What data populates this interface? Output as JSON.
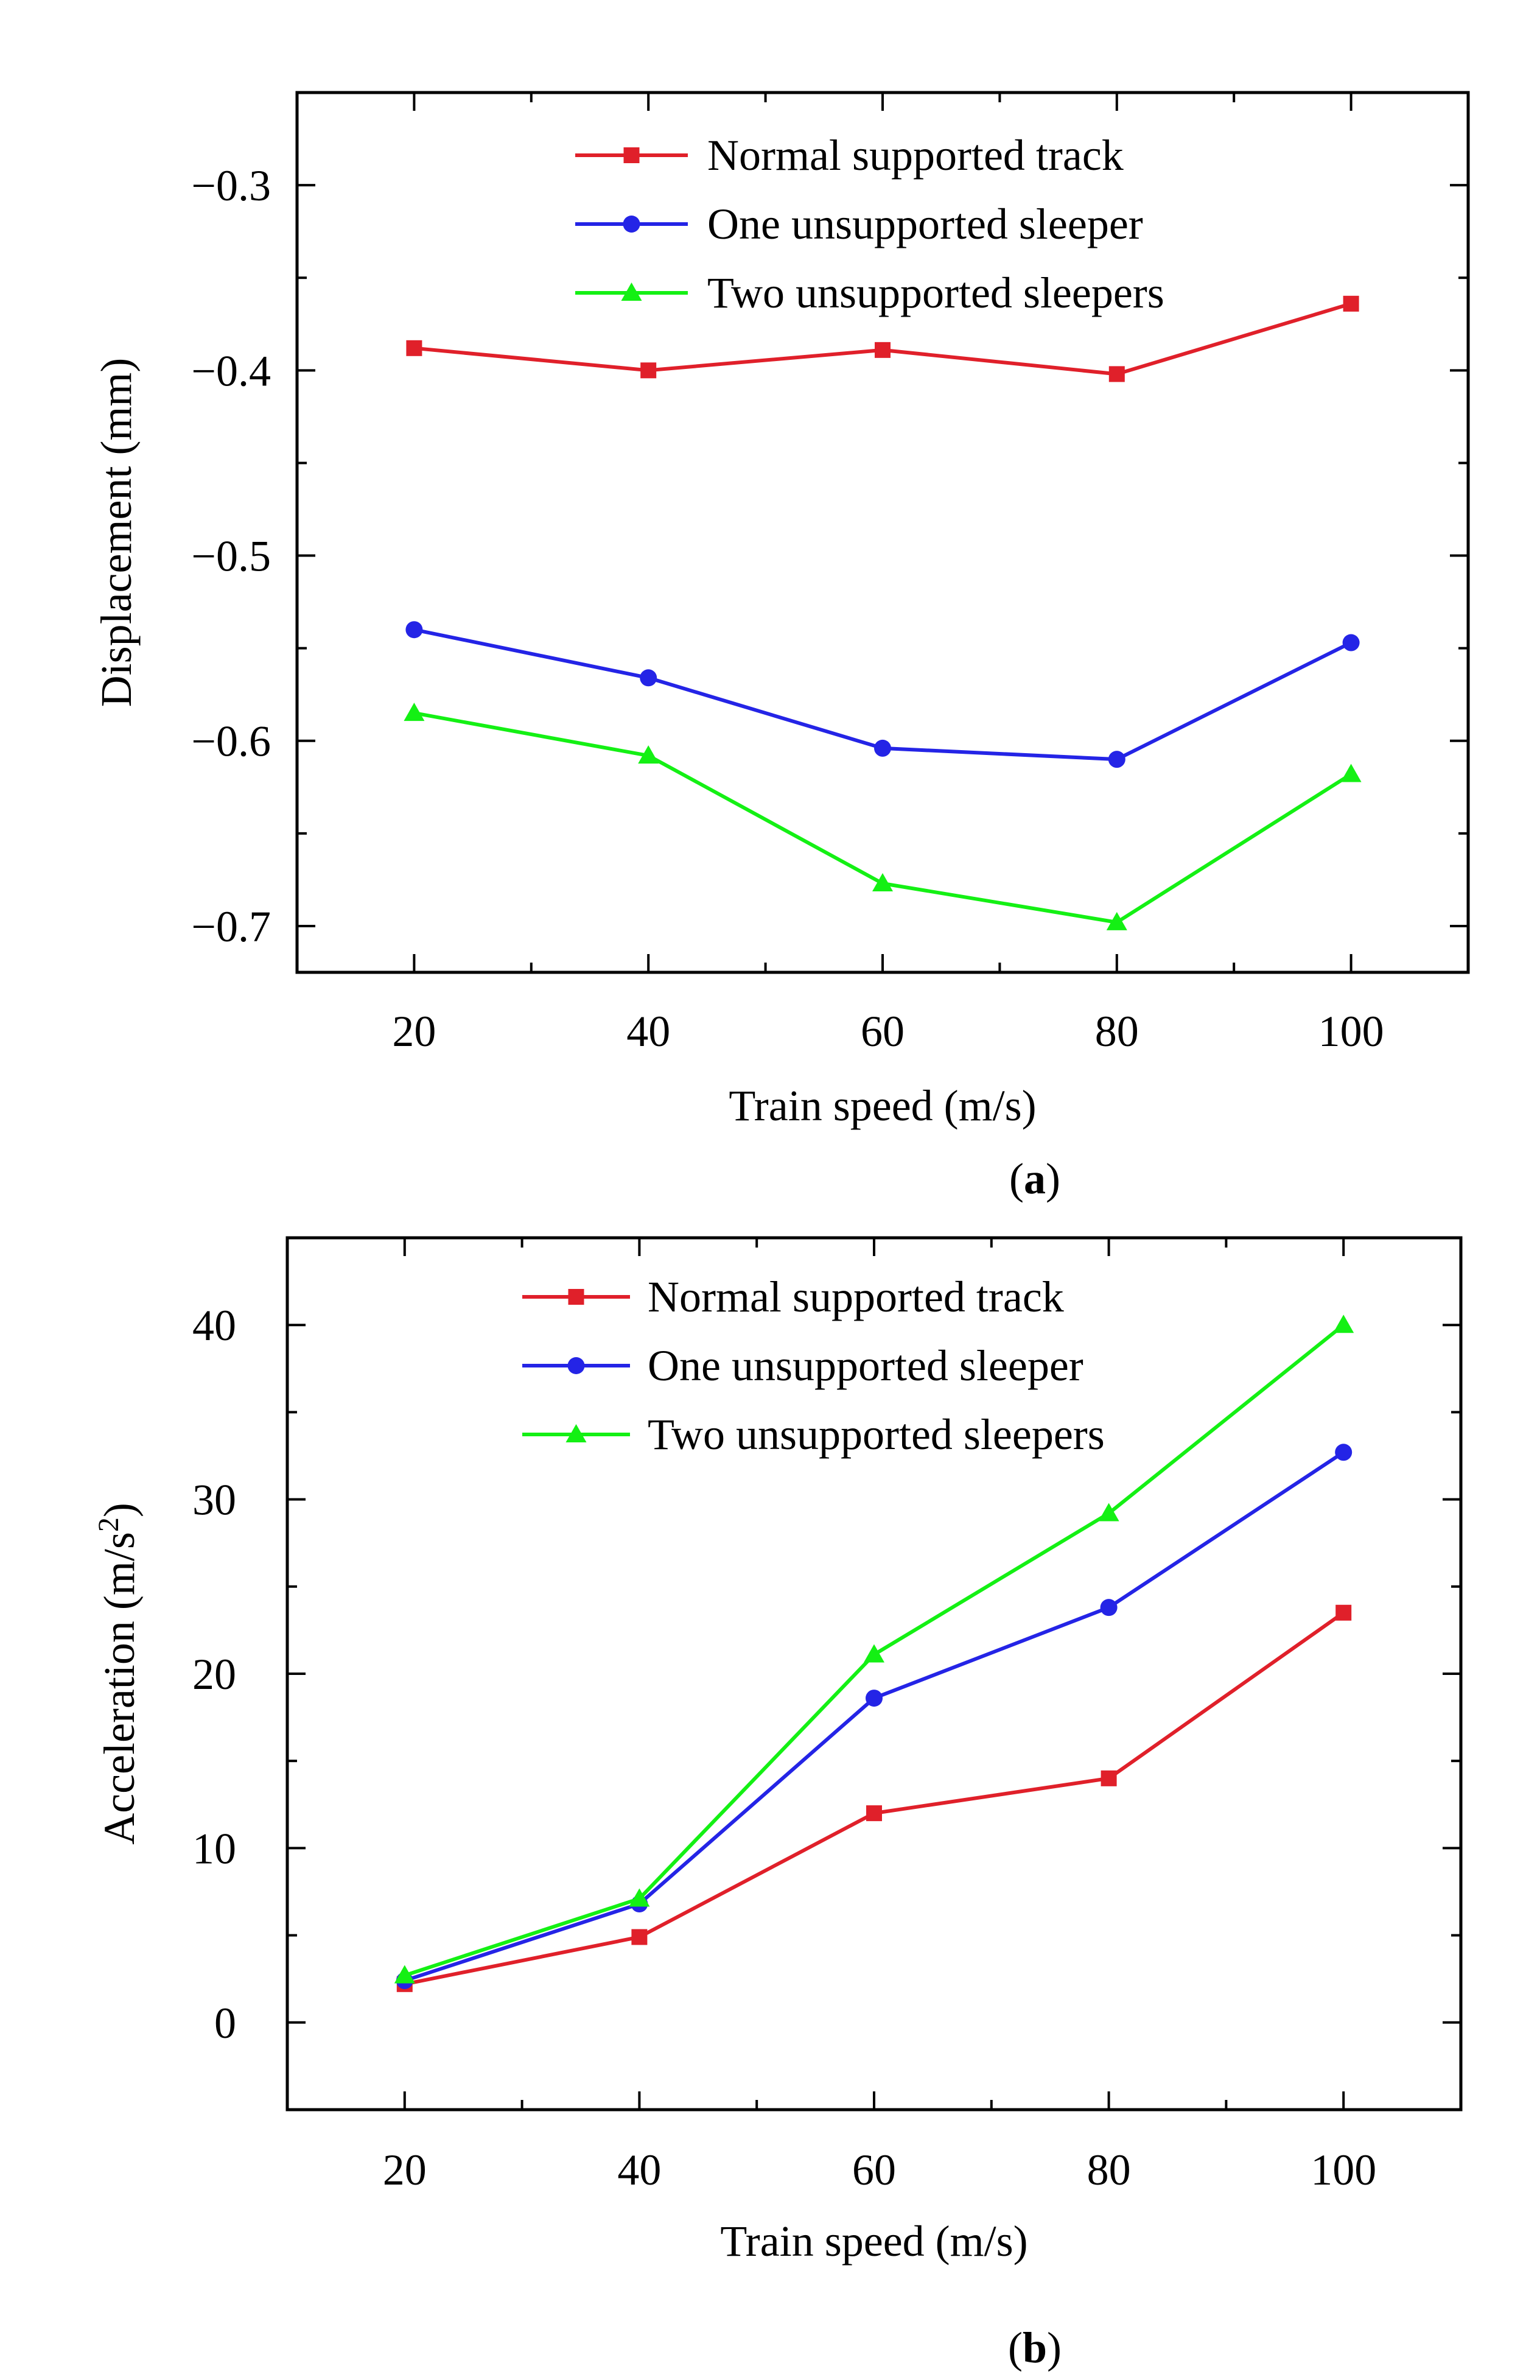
{
  "chart_data": [
    {
      "type": "line",
      "panel_label": "a",
      "title": "",
      "xlabel": "Train speed (m/s)",
      "ylabel": "Displacement (mm)",
      "x": [
        20,
        40,
        60,
        80,
        100
      ],
      "xlim": [
        10,
        110
      ],
      "ylim": [
        -0.725,
        -0.25
      ],
      "x_ticks": [
        "20",
        "40",
        "60",
        "80",
        "100"
      ],
      "y_ticks": [
        -0.3,
        -0.4,
        -0.5,
        -0.6,
        -0.7
      ],
      "y_tick_labels": [
        "−0.3",
        "−0.4",
        "−0.5",
        "−0.6",
        "−0.7"
      ],
      "legend_position": "top-center",
      "grid": false,
      "series": [
        {
          "name": "Normal supported track",
          "color": "#e0202a",
          "marker": "square",
          "values": [
            -0.388,
            -0.4,
            -0.389,
            -0.402,
            -0.364
          ]
        },
        {
          "name": "One unsupported sleeper",
          "color": "#2424e6",
          "marker": "circle",
          "values": [
            -0.54,
            -0.566,
            -0.604,
            -0.61,
            -0.547
          ]
        },
        {
          "name": "Two unsupported sleepers",
          "color": "#14f014",
          "marker": "triangle",
          "values": [
            -0.585,
            -0.608,
            -0.677,
            -0.698,
            -0.618
          ]
        }
      ]
    },
    {
      "type": "line",
      "panel_label": "b",
      "title": "",
      "xlabel": "Train speed (m/s)",
      "ylabel": "Acceleration (m/s",
      "ylabel_sup": "2",
      "ylabel_end": ")",
      "x": [
        20,
        40,
        60,
        80,
        100
      ],
      "xlim": [
        10,
        110
      ],
      "ylim": [
        -5,
        45
      ],
      "x_ticks": [
        "20",
        "40",
        "60",
        "80",
        "100"
      ],
      "y_ticks": [
        0,
        10,
        20,
        30,
        40
      ],
      "y_tick_labels": [
        "0",
        "10",
        "20",
        "30",
        "40"
      ],
      "legend_position": "top-center",
      "grid": false,
      "series": [
        {
          "name": "Normal supported track",
          "color": "#e0202a",
          "marker": "square",
          "values": [
            2.2,
            4.9,
            12.0,
            14.0,
            23.5
          ]
        },
        {
          "name": "One unsupported sleeper",
          "color": "#2424e6",
          "marker": "circle",
          "values": [
            2.4,
            6.8,
            18.6,
            23.8,
            32.7
          ]
        },
        {
          "name": "Two unsupported sleepers",
          "color": "#14f014",
          "marker": "triangle",
          "values": [
            2.7,
            7.1,
            21.1,
            29.2,
            40.0
          ]
        }
      ]
    }
  ]
}
